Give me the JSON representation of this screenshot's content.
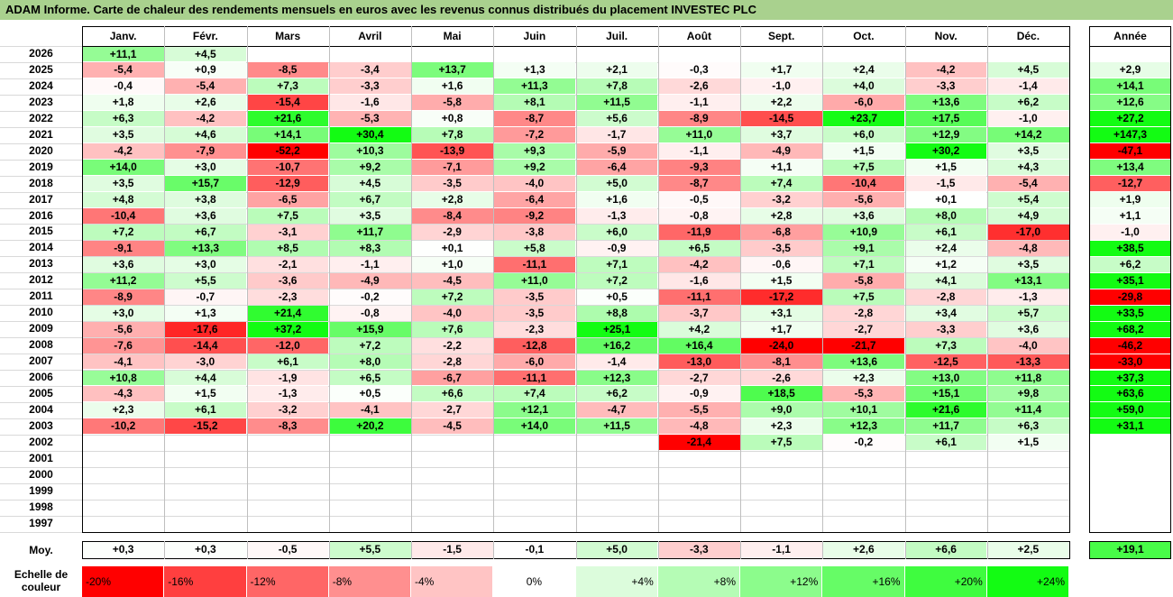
{
  "title": "ADAM Informe. Carte de chaleur des rendements mensuels en euros avec les revenus connus distribués du placement INVESTEC PLC",
  "chart_data": {
    "type": "heatmap",
    "title": "ADAM Informe. Carte de chaleur des rendements mensuels en euros avec les revenus connus distribués du placement INVESTEC PLC",
    "columns": [
      "Janv.",
      "Févr.",
      "Mars",
      "Avril",
      "Mai",
      "Juin",
      "Juil.",
      "Août",
      "Sept.",
      "Oct.",
      "Nov.",
      "Déc."
    ],
    "year_header": "Année",
    "rows": [
      {
        "year": "2026",
        "values": [
          "+11,1",
          "+4,5",
          "",
          "",
          "",
          "",
          "",
          "",
          "",
          "",
          "",
          ""
        ],
        "annual": ""
      },
      {
        "year": "2025",
        "values": [
          "-5,4",
          "+0,9",
          "-8,5",
          "-3,4",
          "+13,7",
          "+1,3",
          "+2,1",
          "-0,3",
          "+1,7",
          "+2,4",
          "-4,2",
          "+4,5"
        ],
        "annual": "+2,9"
      },
      {
        "year": "2024",
        "values": [
          "-0,4",
          "-5,4",
          "+7,3",
          "-3,3",
          "+1,6",
          "+11,3",
          "+7,8",
          "-2,6",
          "-1,0",
          "+4,0",
          "-3,3",
          "-1,4"
        ],
        "annual": "+14,1"
      },
      {
        "year": "2023",
        "values": [
          "+1,8",
          "+2,6",
          "-15,4",
          "-1,6",
          "-5,8",
          "+8,1",
          "+11,5",
          "-1,1",
          "+2,2",
          "-6,0",
          "+13,6",
          "+6,2"
        ],
        "annual": "+12,6"
      },
      {
        "year": "2022",
        "values": [
          "+6,3",
          "-4,2",
          "+21,6",
          "-5,3",
          "+0,8",
          "-8,7",
          "+5,6",
          "-8,9",
          "-14,5",
          "+23,7",
          "+17,5",
          "-1,0"
        ],
        "annual": "+27,2"
      },
      {
        "year": "2021",
        "values": [
          "+3,5",
          "+4,6",
          "+14,1",
          "+30,4",
          "+7,8",
          "-7,2",
          "-1,7",
          "+11,0",
          "+3,7",
          "+6,0",
          "+12,9",
          "+14,2"
        ],
        "annual": "+147,3"
      },
      {
        "year": "2020",
        "values": [
          "-4,2",
          "-7,9",
          "-52,2",
          "+10,3",
          "-13,9",
          "+9,3",
          "-5,9",
          "-1,1",
          "-4,9",
          "+1,5",
          "+30,2",
          "+3,5"
        ],
        "annual": "-47,1"
      },
      {
        "year": "2019",
        "values": [
          "+14,0",
          "+3,0",
          "-10,7",
          "+9,2",
          "-7,1",
          "+9,2",
          "-6,4",
          "-9,3",
          "+1,1",
          "+7,5",
          "+1,5",
          "+4,3"
        ],
        "annual": "+13,4"
      },
      {
        "year": "2018",
        "values": [
          "+3,5",
          "+15,7",
          "-12,9",
          "+4,5",
          "-3,5",
          "-4,0",
          "+5,0",
          "-8,7",
          "+7,4",
          "-10,4",
          "-1,5",
          "-5,4"
        ],
        "annual": "-12,7"
      },
      {
        "year": "2017",
        "values": [
          "+4,8",
          "+3,8",
          "-6,5",
          "+6,7",
          "+2,8",
          "-6,4",
          "+1,6",
          "-0,5",
          "-3,2",
          "-5,6",
          "+0,1",
          "+5,4"
        ],
        "annual": "+1,9"
      },
      {
        "year": "2016",
        "values": [
          "-10,4",
          "+3,6",
          "+7,5",
          "+3,5",
          "-8,4",
          "-9,2",
          "-1,3",
          "-0,8",
          "+2,8",
          "+3,6",
          "+8,0",
          "+4,9"
        ],
        "annual": "+1,1"
      },
      {
        "year": "2015",
        "values": [
          "+7,2",
          "+6,7",
          "-3,1",
          "+11,7",
          "-2,9",
          "-3,8",
          "+6,0",
          "-11,9",
          "-6,8",
          "+10,9",
          "+6,1",
          "-17,0"
        ],
        "annual": "-1,0"
      },
      {
        "year": "2014",
        "values": [
          "-9,1",
          "+13,3",
          "+8,5",
          "+8,3",
          "+0,1",
          "+5,8",
          "-0,9",
          "+6,5",
          "-3,5",
          "+9,1",
          "+2,4",
          "-4,8"
        ],
        "annual": "+38,5"
      },
      {
        "year": "2013",
        "values": [
          "+3,6",
          "+3,0",
          "-2,1",
          "-1,1",
          "+1,0",
          "-11,1",
          "+7,1",
          "-4,2",
          "-0,6",
          "+7,1",
          "+1,2",
          "+3,5"
        ],
        "annual": "+6,2"
      },
      {
        "year": "2012",
        "values": [
          "+11,2",
          "+5,5",
          "-3,6",
          "-4,9",
          "-4,5",
          "+11,0",
          "+7,2",
          "-1,6",
          "+1,5",
          "-5,8",
          "+4,1",
          "+13,1"
        ],
        "annual": "+35,1"
      },
      {
        "year": "2011",
        "values": [
          "-8,9",
          "-0,7",
          "-2,3",
          "-0,2",
          "+7,2",
          "-3,5",
          "+0,5",
          "-11,1",
          "-17,2",
          "+7,5",
          "-2,8",
          "-1,3"
        ],
        "annual": "-29,8"
      },
      {
        "year": "2010",
        "values": [
          "+3,0",
          "+1,3",
          "+21,4",
          "-0,8",
          "-4,0",
          "-3,5",
          "+8,8",
          "-3,7",
          "+3,1",
          "-2,8",
          "+3,4",
          "+5,7"
        ],
        "annual": "+33,5"
      },
      {
        "year": "2009",
        "values": [
          "-5,6",
          "-17,6",
          "+37,2",
          "+15,9",
          "+7,6",
          "-2,3",
          "+25,1",
          "+4,2",
          "+1,7",
          "-2,7",
          "-3,3",
          "+3,6"
        ],
        "annual": "+68,2"
      },
      {
        "year": "2008",
        "values": [
          "-7,6",
          "-14,4",
          "-12,0",
          "+7,2",
          "-2,2",
          "-12,8",
          "+16,2",
          "+16,4",
          "-24,0",
          "-21,7",
          "+7,3",
          "-4,0"
        ],
        "annual": "-46,2"
      },
      {
        "year": "2007",
        "values": [
          "-4,1",
          "-3,0",
          "+6,1",
          "+8,0",
          "-2,8",
          "-6,0",
          "-1,4",
          "-13,0",
          "-8,1",
          "+13,6",
          "-12,5",
          "-13,3"
        ],
        "annual": "-33,0"
      },
      {
        "year": "2006",
        "values": [
          "+10,8",
          "+4,4",
          "-1,9",
          "+6,5",
          "-6,7",
          "-11,1",
          "+12,3",
          "-2,7",
          "-2,6",
          "+2,3",
          "+13,0",
          "+11,8"
        ],
        "annual": "+37,3"
      },
      {
        "year": "2005",
        "values": [
          "-4,3",
          "+1,5",
          "-1,3",
          "+0,5",
          "+6,6",
          "+7,4",
          "+6,2",
          "-0,9",
          "+18,5",
          "-5,3",
          "+15,1",
          "+9,8"
        ],
        "annual": "+63,6"
      },
      {
        "year": "2004",
        "values": [
          "+2,3",
          "+6,1",
          "-3,2",
          "-4,1",
          "-2,7",
          "+12,1",
          "-4,7",
          "-5,5",
          "+9,0",
          "+10,1",
          "+21,6",
          "+11,4"
        ],
        "annual": "+59,0"
      },
      {
        "year": "2003",
        "values": [
          "-10,2",
          "-15,2",
          "-8,3",
          "+20,2",
          "-4,5",
          "+14,0",
          "+11,5",
          "-4,8",
          "+2,3",
          "+12,3",
          "+11,7",
          "+6,3"
        ],
        "annual": "+31,1"
      },
      {
        "year": "2002",
        "values": [
          "",
          "",
          "",
          "",
          "",
          "",
          "",
          "-21,4",
          "+7,5",
          "-0,2",
          "+6,1",
          "+1,5"
        ],
        "annual": ""
      },
      {
        "year": "2001",
        "values": [
          "",
          "",
          "",
          "",
          "",
          "",
          "",
          "",
          "",
          "",
          "",
          ""
        ],
        "annual": ""
      },
      {
        "year": "2000",
        "values": [
          "",
          "",
          "",
          "",
          "",
          "",
          "",
          "",
          "",
          "",
          "",
          ""
        ],
        "annual": ""
      },
      {
        "year": "1999",
        "values": [
          "",
          "",
          "",
          "",
          "",
          "",
          "",
          "",
          "",
          "",
          "",
          ""
        ],
        "annual": ""
      },
      {
        "year": "1998",
        "values": [
          "",
          "",
          "",
          "",
          "",
          "",
          "",
          "",
          "",
          "",
          "",
          ""
        ],
        "annual": ""
      },
      {
        "year": "1997",
        "values": [
          "",
          "",
          "",
          "",
          "",
          "",
          "",
          "",
          "",
          "",
          "",
          ""
        ],
        "annual": ""
      }
    ],
    "average": {
      "label": "Moy.",
      "values": [
        "+0,3",
        "+0,3",
        "-0,5",
        "+5,5",
        "-1,5",
        "-0,1",
        "+5,0",
        "-3,3",
        "-1,1",
        "+2,6",
        "+6,6",
        "+2,5"
      ],
      "annual": "+19,1"
    },
    "color_scale": {
      "label": "Echelle de couleur",
      "steps": [
        {
          "label": "-20%",
          "value": -20,
          "color": "#ff0000"
        },
        {
          "label": "-16%",
          "value": -16,
          "color": "#ff3f3f"
        },
        {
          "label": "-12%",
          "value": -12,
          "color": "#ff6666"
        },
        {
          "label": "-8%",
          "value": -8,
          "color": "#ff8f8f"
        },
        {
          "label": "-4%",
          "value": -4,
          "color": "#ffc4c4"
        },
        {
          "label": "0%",
          "value": 0,
          "color": "#ffffff"
        },
        {
          "label": "+4%",
          "value": 4,
          "color": "#dcfcdc"
        },
        {
          "label": "+8%",
          "value": 8,
          "color": "#b5fcb5"
        },
        {
          "label": "+12%",
          "value": 12,
          "color": "#8cfc8c"
        },
        {
          "label": "+16%",
          "value": 16,
          "color": "#66fc66"
        },
        {
          "label": "+20%",
          "value": 20,
          "color": "#3ffc3f"
        },
        {
          "label": "+24%",
          "value": 24,
          "color": "#13fc13"
        }
      ]
    }
  }
}
